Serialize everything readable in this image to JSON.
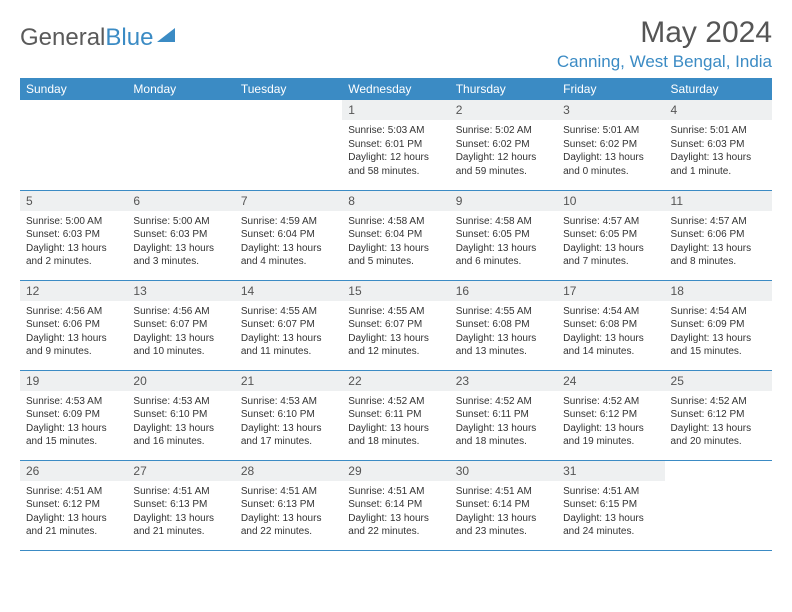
{
  "logo": {
    "text1": "General",
    "text2": "Blue"
  },
  "title": "May 2024",
  "location": "Canning, West Bengal, India",
  "colors": {
    "header_bg": "#3b8bc4",
    "header_fg": "#ffffff",
    "daynum_bg": "#eef0f1",
    "border": "#3b8bc4",
    "logo_gray": "#5a5a5a",
    "logo_blue": "#3b8bc4"
  },
  "weekdays": [
    "Sunday",
    "Monday",
    "Tuesday",
    "Wednesday",
    "Thursday",
    "Friday",
    "Saturday"
  ],
  "weeks": [
    [
      null,
      null,
      null,
      {
        "n": "1",
        "sr": "5:03 AM",
        "ss": "6:01 PM",
        "dl": "12 hours and 58 minutes."
      },
      {
        "n": "2",
        "sr": "5:02 AM",
        "ss": "6:02 PM",
        "dl": "12 hours and 59 minutes."
      },
      {
        "n": "3",
        "sr": "5:01 AM",
        "ss": "6:02 PM",
        "dl": "13 hours and 0 minutes."
      },
      {
        "n": "4",
        "sr": "5:01 AM",
        "ss": "6:03 PM",
        "dl": "13 hours and 1 minute."
      }
    ],
    [
      {
        "n": "5",
        "sr": "5:00 AM",
        "ss": "6:03 PM",
        "dl": "13 hours and 2 minutes."
      },
      {
        "n": "6",
        "sr": "5:00 AM",
        "ss": "6:03 PM",
        "dl": "13 hours and 3 minutes."
      },
      {
        "n": "7",
        "sr": "4:59 AM",
        "ss": "6:04 PM",
        "dl": "13 hours and 4 minutes."
      },
      {
        "n": "8",
        "sr": "4:58 AM",
        "ss": "6:04 PM",
        "dl": "13 hours and 5 minutes."
      },
      {
        "n": "9",
        "sr": "4:58 AM",
        "ss": "6:05 PM",
        "dl": "13 hours and 6 minutes."
      },
      {
        "n": "10",
        "sr": "4:57 AM",
        "ss": "6:05 PM",
        "dl": "13 hours and 7 minutes."
      },
      {
        "n": "11",
        "sr": "4:57 AM",
        "ss": "6:06 PM",
        "dl": "13 hours and 8 minutes."
      }
    ],
    [
      {
        "n": "12",
        "sr": "4:56 AM",
        "ss": "6:06 PM",
        "dl": "13 hours and 9 minutes."
      },
      {
        "n": "13",
        "sr": "4:56 AM",
        "ss": "6:07 PM",
        "dl": "13 hours and 10 minutes."
      },
      {
        "n": "14",
        "sr": "4:55 AM",
        "ss": "6:07 PM",
        "dl": "13 hours and 11 minutes."
      },
      {
        "n": "15",
        "sr": "4:55 AM",
        "ss": "6:07 PM",
        "dl": "13 hours and 12 minutes."
      },
      {
        "n": "16",
        "sr": "4:55 AM",
        "ss": "6:08 PM",
        "dl": "13 hours and 13 minutes."
      },
      {
        "n": "17",
        "sr": "4:54 AM",
        "ss": "6:08 PM",
        "dl": "13 hours and 14 minutes."
      },
      {
        "n": "18",
        "sr": "4:54 AM",
        "ss": "6:09 PM",
        "dl": "13 hours and 15 minutes."
      }
    ],
    [
      {
        "n": "19",
        "sr": "4:53 AM",
        "ss": "6:09 PM",
        "dl": "13 hours and 15 minutes."
      },
      {
        "n": "20",
        "sr": "4:53 AM",
        "ss": "6:10 PM",
        "dl": "13 hours and 16 minutes."
      },
      {
        "n": "21",
        "sr": "4:53 AM",
        "ss": "6:10 PM",
        "dl": "13 hours and 17 minutes."
      },
      {
        "n": "22",
        "sr": "4:52 AM",
        "ss": "6:11 PM",
        "dl": "13 hours and 18 minutes."
      },
      {
        "n": "23",
        "sr": "4:52 AM",
        "ss": "6:11 PM",
        "dl": "13 hours and 18 minutes."
      },
      {
        "n": "24",
        "sr": "4:52 AM",
        "ss": "6:12 PM",
        "dl": "13 hours and 19 minutes."
      },
      {
        "n": "25",
        "sr": "4:52 AM",
        "ss": "6:12 PM",
        "dl": "13 hours and 20 minutes."
      }
    ],
    [
      {
        "n": "26",
        "sr": "4:51 AM",
        "ss": "6:12 PM",
        "dl": "13 hours and 21 minutes."
      },
      {
        "n": "27",
        "sr": "4:51 AM",
        "ss": "6:13 PM",
        "dl": "13 hours and 21 minutes."
      },
      {
        "n": "28",
        "sr": "4:51 AM",
        "ss": "6:13 PM",
        "dl": "13 hours and 22 minutes."
      },
      {
        "n": "29",
        "sr": "4:51 AM",
        "ss": "6:14 PM",
        "dl": "13 hours and 22 minutes."
      },
      {
        "n": "30",
        "sr": "4:51 AM",
        "ss": "6:14 PM",
        "dl": "13 hours and 23 minutes."
      },
      {
        "n": "31",
        "sr": "4:51 AM",
        "ss": "6:15 PM",
        "dl": "13 hours and 24 minutes."
      },
      null
    ]
  ],
  "labels": {
    "sunrise": "Sunrise:",
    "sunset": "Sunset:",
    "daylight": "Daylight:"
  }
}
